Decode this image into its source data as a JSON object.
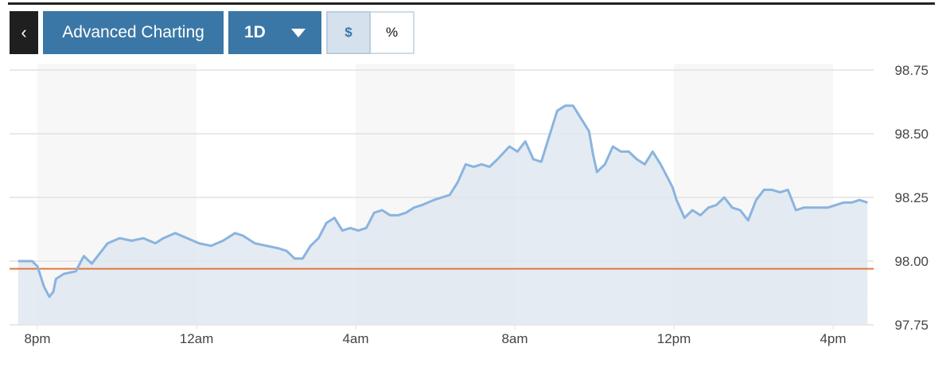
{
  "toolbar": {
    "back_icon": "chevron-left-icon",
    "advanced_label": "Advanced Charting",
    "range_label": "1D",
    "range_icon": "caret-down-icon",
    "dollar_label": "$",
    "percent_label": "%",
    "active_mode": "$"
  },
  "chart_data": {
    "type": "area",
    "xlabel": "",
    "ylabel": "",
    "y_ticks": [
      "98.75",
      "98.50",
      "98.25",
      "98.00",
      "97.75"
    ],
    "x_ticks": [
      "8pm",
      "12am",
      "4am",
      "8am",
      "12pm",
      "4pm"
    ],
    "ylim": [
      97.75,
      98.75
    ],
    "xlim": [
      "19:31",
      "16:52"
    ],
    "grid": "horizontal",
    "reference_line": 97.97,
    "colors": {
      "line": "#8ab4de",
      "fill": "#dfe8f0",
      "reference": "#e07840",
      "band": "#f7f7f7",
      "grid": "#e2e2e2"
    },
    "series": [
      {
        "t": [
          "19:31",
          "19:52",
          "20:00",
          "20:10",
          "20:18",
          "20:24",
          "20:28",
          "20:40",
          "20:58",
          "21:10",
          "21:22",
          "21:34",
          "21:46",
          "22:04",
          "22:22",
          "22:40",
          "22:58",
          "23:10",
          "23:28",
          "23:46",
          "00:04",
          "00:22",
          "00:40",
          "00:58",
          "01:10",
          "01:28",
          "01:46",
          "02:04",
          "02:16",
          "02:28",
          "02:40",
          "02:52",
          "03:04",
          "03:16",
          "03:28",
          "03:40",
          "03:52",
          "04:04",
          "04:16",
          "04:28",
          "04:40",
          "04:52",
          "05:04",
          "05:16",
          "05:28",
          "05:40",
          "05:58",
          "06:10",
          "06:22",
          "06:34",
          "06:46",
          "06:58",
          "07:10",
          "07:22",
          "07:34",
          "07:52",
          "08:04",
          "08:16",
          "08:28",
          "08:40",
          "08:52",
          "09:04",
          "09:16",
          "09:28",
          "09:40",
          "09:52",
          "09:58",
          "10:04",
          "10:16",
          "10:28",
          "10:40",
          "10:52",
          "11:04",
          "11:16",
          "11:28",
          "11:40",
          "11:52",
          "11:58",
          "12:04",
          "12:16",
          "12:28",
          "12:40",
          "12:52",
          "13:04",
          "13:16",
          "13:28",
          "13:40",
          "13:52",
          "14:04",
          "14:16",
          "14:28",
          "14:40",
          "14:52",
          "15:04",
          "15:16",
          "15:28",
          "15:40",
          "15:52",
          "16:04",
          "16:16",
          "16:28",
          "16:40",
          "16:52"
        ],
        "values": [
          98.0,
          98.0,
          97.98,
          97.9,
          97.86,
          97.88,
          97.93,
          97.95,
          97.96,
          98.02,
          97.99,
          98.03,
          98.07,
          98.09,
          98.08,
          98.09,
          98.07,
          98.09,
          98.11,
          98.09,
          98.07,
          98.06,
          98.08,
          98.11,
          98.1,
          98.07,
          98.06,
          98.05,
          98.04,
          98.01,
          98.01,
          98.06,
          98.09,
          98.15,
          98.17,
          98.12,
          98.13,
          98.12,
          98.13,
          98.19,
          98.2,
          98.18,
          98.18,
          98.19,
          98.21,
          98.22,
          98.24,
          98.25,
          98.26,
          98.31,
          98.38,
          98.37,
          98.38,
          98.37,
          98.4,
          98.45,
          98.43,
          98.47,
          98.4,
          98.39,
          98.49,
          98.59,
          98.61,
          98.61,
          98.56,
          98.51,
          98.42,
          98.35,
          98.38,
          98.45,
          98.43,
          98.43,
          98.4,
          98.38,
          98.43,
          98.38,
          98.32,
          98.29,
          98.24,
          98.17,
          98.2,
          98.18,
          98.21,
          98.22,
          98.25,
          98.21,
          98.2,
          98.16,
          98.24,
          98.28,
          98.28,
          98.27,
          98.28,
          98.2,
          98.21,
          98.21,
          98.21,
          98.21,
          98.22,
          98.23,
          98.23,
          98.24,
          98.23
        ]
      }
    ]
  }
}
